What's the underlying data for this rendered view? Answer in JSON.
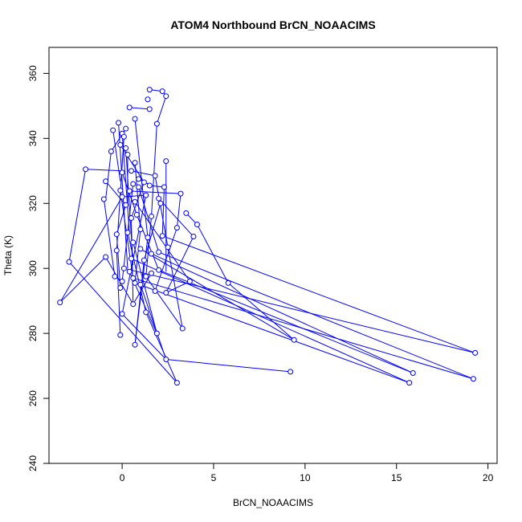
{
  "chart_data": {
    "type": "line",
    "title": "ATOM4 Northbound BrCN_NOAACIMS",
    "xlabel": "BrCN_NOAACIMS",
    "ylabel": "Theta (K)",
    "xlim": [
      -4,
      20.5
    ],
    "ylim": [
      240,
      368
    ],
    "xticks": [
      0,
      5,
      10,
      15,
      20
    ],
    "yticks": [
      240,
      260,
      280,
      300,
      320,
      340,
      360
    ],
    "grid": false,
    "legend": "none",
    "series": [
      {
        "color": "#0000ff",
        "marker": "open-circle",
        "points": [
          [
            1.5,
            355.0
          ],
          [
            2.2,
            354.5
          ],
          [
            2.4,
            353.0
          ],
          [
            1.4,
            352.0
          ],
          [
            0.4,
            349.5
          ],
          [
            1.5,
            349.0
          ],
          [
            0.7,
            346.0
          ],
          [
            1.9,
            344.5
          ],
          [
            -0.2,
            344.8
          ],
          [
            0.2,
            343.0
          ],
          [
            -0.5,
            342.5
          ],
          [
            0.0,
            341.5
          ],
          [
            0.1,
            340.5
          ],
          [
            -0.1,
            338.0
          ],
          [
            0.2,
            337.0
          ],
          [
            -0.6,
            336.0
          ],
          [
            0.3,
            335.0
          ],
          [
            2.4,
            333.0
          ],
          [
            0.7,
            332.5
          ],
          [
            -2.0,
            330.5
          ],
          [
            0.5,
            330.0
          ],
          [
            0.0,
            329.5
          ],
          [
            1.8,
            328.5
          ],
          [
            0.9,
            327.5
          ],
          [
            -0.9,
            326.8
          ],
          [
            1.2,
            326.5
          ],
          [
            0.6,
            326.0
          ],
          [
            1.5,
            325.5
          ],
          [
            0.9,
            325.0
          ],
          [
            2.3,
            325.0
          ],
          [
            -0.1,
            324.0
          ],
          [
            0.4,
            323.8
          ],
          [
            3.2,
            323.0
          ],
          [
            1.3,
            322.5
          ],
          [
            0.0,
            322.0
          ],
          [
            2.0,
            321.5
          ],
          [
            -1.0,
            321.3
          ],
          [
            0.7,
            320.5
          ],
          [
            2.1,
            320.0
          ],
          [
            0.2,
            319.5
          ],
          [
            3.5,
            317.0
          ],
          [
            0.8,
            316.5
          ],
          [
            1.6,
            316.0
          ],
          [
            0.5,
            315.5
          ],
          [
            4.1,
            313.5
          ],
          [
            3.0,
            312.5
          ],
          [
            1.0,
            312.0
          ],
          [
            0.3,
            311.0
          ],
          [
            -0.3,
            310.5
          ],
          [
            2.2,
            310.0
          ],
          [
            3.9,
            309.8
          ],
          [
            1.4,
            309.5
          ],
          [
            0.6,
            308.0
          ],
          [
            2.5,
            306.5
          ],
          [
            1.0,
            306.0
          ],
          [
            -0.3,
            305.5
          ],
          [
            2.0,
            305.0
          ],
          [
            1.6,
            304.5
          ],
          [
            -0.9,
            303.5
          ],
          [
            0.5,
            303.0
          ],
          [
            1.2,
            302.5
          ],
          [
            -2.9,
            302.0
          ],
          [
            0.1,
            300.0
          ],
          [
            2.0,
            299.5
          ],
          [
            0.4,
            299.0
          ],
          [
            1.6,
            298.5
          ],
          [
            -0.4,
            297.5
          ],
          [
            0.6,
            297.0
          ],
          [
            1.3,
            297.5
          ],
          [
            0.0,
            296.0
          ],
          [
            3.7,
            296.0
          ],
          [
            5.8,
            295.5
          ],
          [
            0.7,
            295.5
          ],
          [
            1.0,
            295.0
          ],
          [
            -0.1,
            294.0
          ],
          [
            2.4,
            292.5
          ],
          [
            1.8,
            293.0
          ],
          [
            -3.4,
            289.5
          ],
          [
            0.6,
            289.0
          ],
          [
            1.3,
            286.5
          ],
          [
            0.0,
            286.0
          ],
          [
            3.3,
            281.5
          ],
          [
            1.9,
            280.0
          ],
          [
            -0.1,
            279.5
          ],
          [
            9.4,
            278.0
          ],
          [
            0.7,
            276.5
          ],
          [
            19.3,
            274.0
          ],
          [
            2.4,
            272.0
          ],
          [
            9.2,
            268.2
          ],
          [
            15.9,
            267.8
          ],
          [
            19.2,
            266.0
          ],
          [
            15.7,
            264.8
          ],
          [
            3.0,
            264.8
          ]
        ],
        "extra_segments": [
          [
            [
              1.5,
              355.0
            ],
            [
              2.2,
              354.5
            ]
          ],
          [
            [
              2.2,
              354.5
            ],
            [
              2.4,
              353.0
            ]
          ],
          [
            [
              2.4,
              353.0
            ],
            [
              1.9,
              344.5
            ]
          ],
          [
            [
              1.9,
              344.5
            ],
            [
              1.6,
              316.0
            ]
          ],
          [
            [
              0.4,
              349.5
            ],
            [
              1.5,
              349.0
            ]
          ],
          [
            [
              0.7,
              346.0
            ],
            [
              1.4,
              309.5
            ]
          ],
          [
            [
              -0.2,
              344.8
            ],
            [
              0.3,
              300.0
            ]
          ],
          [
            [
              0.2,
              343.0
            ],
            [
              -0.6,
              336.0
            ]
          ],
          [
            [
              -0.5,
              342.5
            ],
            [
              -0.1,
              326.8
            ]
          ],
          [
            [
              0.0,
              341.5
            ],
            [
              0.4,
              311.0
            ]
          ],
          [
            [
              0.1,
              340.5
            ],
            [
              -0.3,
              305.5
            ]
          ],
          [
            [
              -0.1,
              338.0
            ],
            [
              1.2,
              326.5
            ]
          ],
          [
            [
              0.2,
              337.0
            ],
            [
              0.6,
              301.0
            ]
          ],
          [
            [
              -0.6,
              336.0
            ],
            [
              -0.9,
              321.3
            ]
          ],
          [
            [
              0.3,
              335.0
            ],
            [
              0.3,
              319.5
            ]
          ],
          [
            [
              2.4,
              333.0
            ],
            [
              2.4,
              299.0
            ]
          ],
          [
            [
              0.7,
              332.5
            ],
            [
              1.0,
              312.0
            ]
          ],
          [
            [
              -2.0,
              330.5
            ],
            [
              0.1,
              330.0
            ]
          ],
          [
            [
              -2.0,
              330.5
            ],
            [
              -2.9,
              302.0
            ]
          ],
          [
            [
              0.5,
              330.0
            ],
            [
              1.8,
              328.5
            ]
          ],
          [
            [
              0.0,
              329.5
            ],
            [
              0.8,
              316.5
            ]
          ],
          [
            [
              1.8,
              328.5
            ],
            [
              2.5,
              306.5
            ]
          ],
          [
            [
              0.9,
              327.5
            ],
            [
              1.6,
              325.5
            ]
          ],
          [
            [
              -0.9,
              326.8
            ],
            [
              0.2,
              319.5
            ]
          ],
          [
            [
              1.2,
              326.5
            ],
            [
              0.5,
              315.5
            ]
          ],
          [
            [
              0.6,
              326.0
            ],
            [
              0.0,
              296.0
            ]
          ],
          [
            [
              1.5,
              325.5
            ],
            [
              2.3,
              325.0
            ]
          ],
          [
            [
              0.9,
              325.0
            ],
            [
              2.0,
              305.0
            ]
          ],
          [
            [
              2.3,
              325.0
            ],
            [
              2.2,
              310.0
            ]
          ],
          [
            [
              -0.1,
              324.0
            ],
            [
              0.6,
              297.0
            ]
          ],
          [
            [
              0.4,
              323.8
            ],
            [
              3.2,
              323.0
            ]
          ],
          [
            [
              3.2,
              323.0
            ],
            [
              3.0,
              312.5
            ]
          ],
          [
            [
              1.3,
              322.5
            ],
            [
              0.0,
              286.0
            ]
          ],
          [
            [
              0.0,
              322.0
            ],
            [
              1.3,
              322.5
            ]
          ],
          [
            [
              2.0,
              321.5
            ],
            [
              3.9,
              309.8
            ]
          ],
          [
            [
              -1.0,
              321.3
            ],
            [
              -0.4,
              297.5
            ]
          ],
          [
            [
              0.7,
              320.5
            ],
            [
              3.7,
              296.0
            ]
          ],
          [
            [
              2.1,
              320.0
            ],
            [
              1.2,
              302.5
            ]
          ],
          [
            [
              0.2,
              319.5
            ],
            [
              -0.3,
              310.5
            ]
          ],
          [
            [
              3.5,
              317.0
            ],
            [
              4.1,
              313.5
            ]
          ],
          [
            [
              0.8,
              316.5
            ],
            [
              2.0,
              299.5
            ]
          ],
          [
            [
              1.6,
              316.0
            ],
            [
              1.3,
              297.5
            ]
          ],
          [
            [
              0.5,
              315.5
            ],
            [
              0.6,
              289.0
            ]
          ],
          [
            [
              4.1,
              313.5
            ],
            [
              5.8,
              295.5
            ]
          ],
          [
            [
              3.0,
              312.5
            ],
            [
              1.8,
              293.0
            ]
          ],
          [
            [
              1.0,
              312.0
            ],
            [
              0.7,
              295.5
            ]
          ],
          [
            [
              0.3,
              311.0
            ],
            [
              1.3,
              286.5
            ]
          ],
          [
            [
              -0.3,
              310.5
            ],
            [
              -0.1,
              294.0
            ]
          ],
          [
            [
              2.2,
              310.0
            ],
            [
              19.3,
              274.0
            ]
          ],
          [
            [
              3.9,
              309.8
            ],
            [
              2.4,
              292.5
            ]
          ],
          [
            [
              1.4,
              309.5
            ],
            [
              0.7,
              276.5
            ]
          ],
          [
            [
              0.6,
              308.0
            ],
            [
              1.9,
              280.0
            ]
          ],
          [
            [
              2.5,
              306.5
            ],
            [
              3.3,
              281.5
            ]
          ],
          [
            [
              1.0,
              306.0
            ],
            [
              9.4,
              278.0
            ]
          ],
          [
            [
              -0.3,
              305.5
            ],
            [
              -0.1,
              279.5
            ]
          ],
          [
            [
              2.0,
              305.0
            ],
            [
              19.2,
              266.0
            ]
          ],
          [
            [
              1.6,
              304.5
            ],
            [
              15.9,
              267.8
            ]
          ],
          [
            [
              -0.9,
              303.5
            ],
            [
              0.6,
              289.0
            ]
          ],
          [
            [
              0.5,
              303.0
            ],
            [
              15.7,
              264.8
            ]
          ],
          [
            [
              1.2,
              302.5
            ],
            [
              0.7,
              276.5
            ]
          ],
          [
            [
              -2.9,
              302.0
            ],
            [
              3.0,
              264.8
            ]
          ],
          [
            [
              0.1,
              300.0
            ],
            [
              19.3,
              274.0
            ]
          ],
          [
            [
              2.0,
              299.5
            ],
            [
              15.9,
              267.8
            ]
          ],
          [
            [
              0.4,
              299.0
            ],
            [
              1.9,
              280.0
            ]
          ],
          [
            [
              1.6,
              298.5
            ],
            [
              0.6,
              289.0
            ]
          ],
          [
            [
              -0.4,
              297.5
            ],
            [
              0.0,
              296.0
            ]
          ],
          [
            [
              0.6,
              297.0
            ],
            [
              19.2,
              266.0
            ]
          ],
          [
            [
              1.3,
              297.5
            ],
            [
              3.3,
              281.5
            ]
          ],
          [
            [
              3.7,
              296.0
            ],
            [
              2.4,
              292.5
            ]
          ],
          [
            [
              5.8,
              295.5
            ],
            [
              9.4,
              278.0
            ]
          ],
          [
            [
              0.7,
              295.5
            ],
            [
              15.7,
              264.8
            ]
          ],
          [
            [
              1.0,
              295.0
            ],
            [
              2.4,
              272.0
            ]
          ],
          [
            [
              -3.4,
              289.5
            ],
            [
              0.0,
              322.0
            ]
          ],
          [
            [
              -3.4,
              289.5
            ],
            [
              -0.9,
              303.5
            ]
          ],
          [
            [
              1.3,
              286.5
            ],
            [
              3.0,
              264.8
            ]
          ],
          [
            [
              2.4,
              272.0
            ],
            [
              9.2,
              268.2
            ]
          ],
          [
            [
              0.0,
              286.0
            ],
            [
              2.4,
              272.0
            ]
          ]
        ]
      }
    ]
  }
}
